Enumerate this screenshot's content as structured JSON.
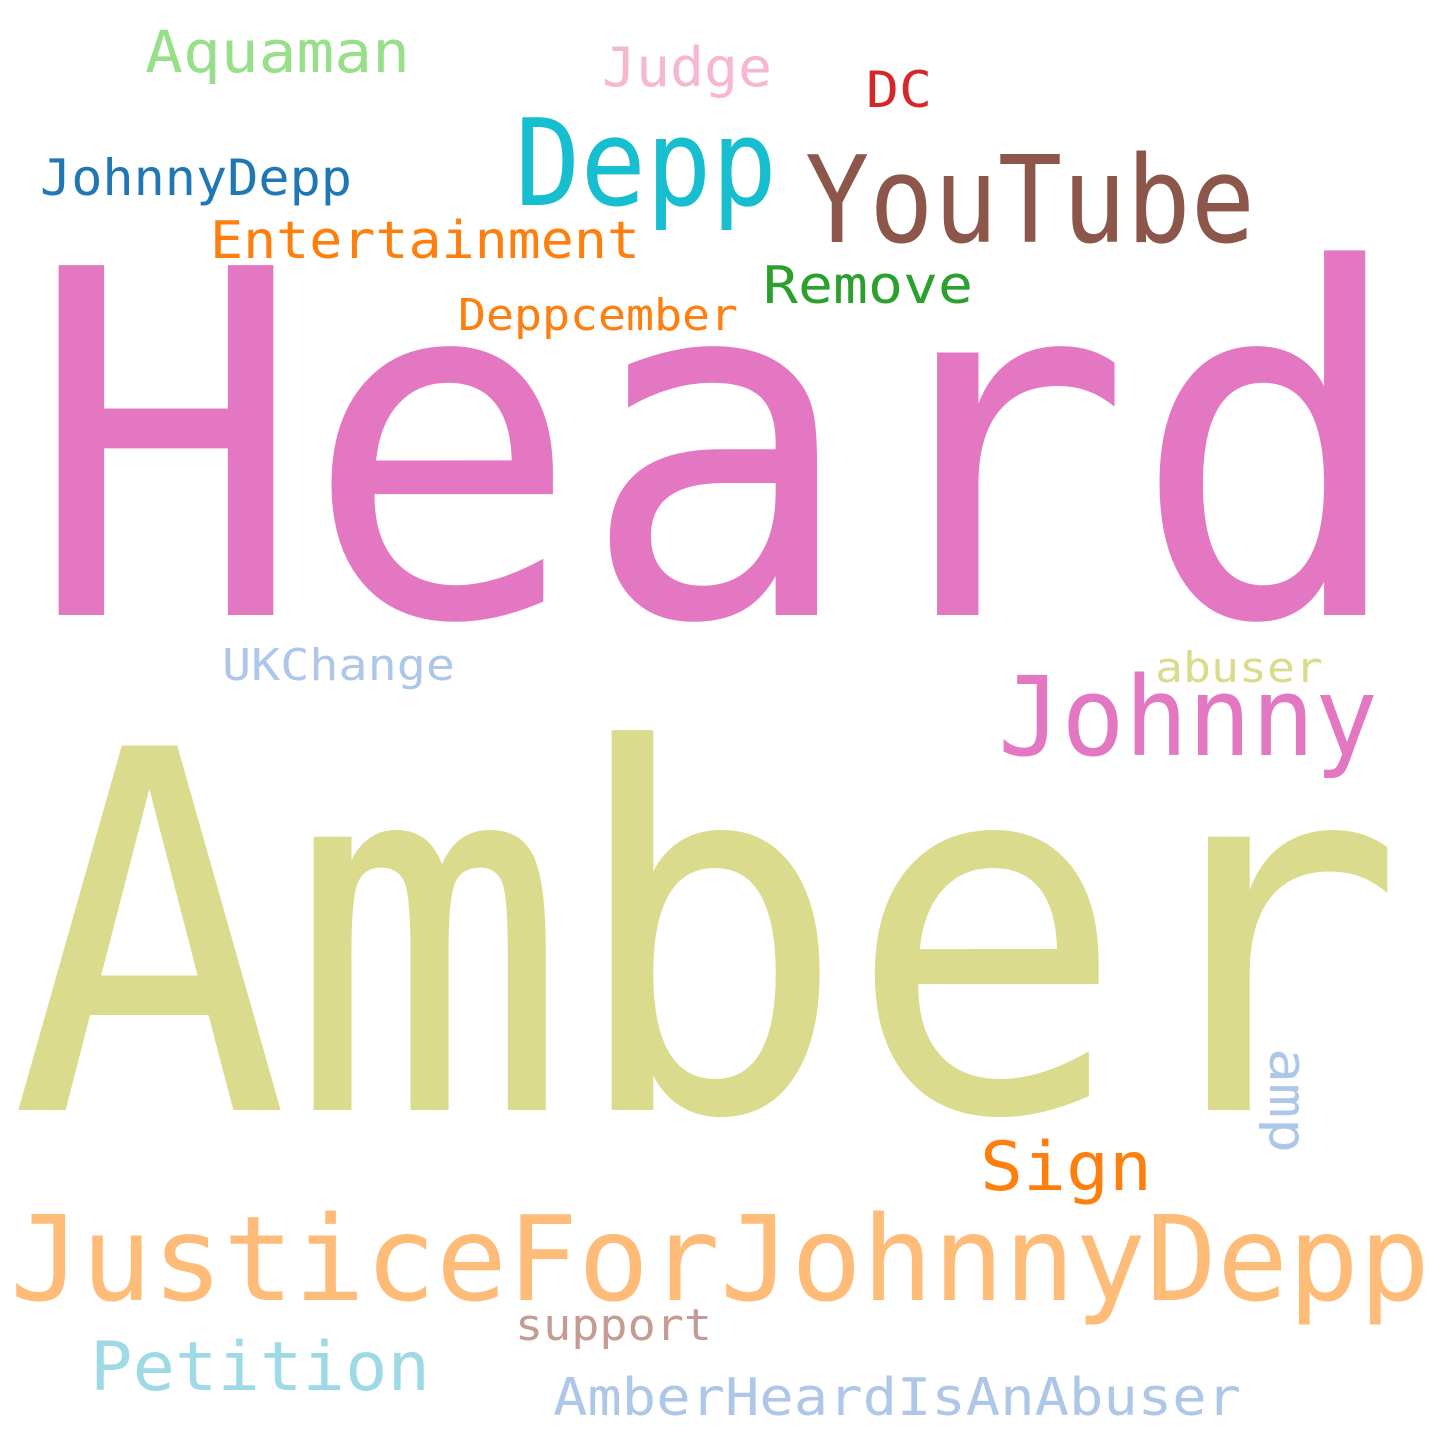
{
  "words": [
    {
      "key": "heard",
      "text": "Heard",
      "color": "#e377c2"
    },
    {
      "key": "amber",
      "text": "Amber",
      "color": "#dbdb8d"
    },
    {
      "key": "justice",
      "text": "JusticeForJohnnyDepp",
      "color": "#ffbb78"
    },
    {
      "key": "youtube",
      "text": "YouTube",
      "color": "#8c564b"
    },
    {
      "key": "depp",
      "text": "Depp",
      "color": "#17becf"
    },
    {
      "key": "johnny",
      "text": "Johnny",
      "color": "#e377c2"
    },
    {
      "key": "entertainment",
      "text": "Entertainment",
      "color": "#ff7f0e"
    },
    {
      "key": "aquaman",
      "text": "Aquaman",
      "color": "#98df8a"
    },
    {
      "key": "johnnydepp",
      "text": "JohnnyDepp",
      "color": "#1f77b4"
    },
    {
      "key": "judge",
      "text": "Judge",
      "color": "#f7b6d2"
    },
    {
      "key": "dc",
      "text": "DC",
      "color": "#d62728"
    },
    {
      "key": "remove",
      "text": "Remove",
      "color": "#2ca02c"
    },
    {
      "key": "deppcember",
      "text": "Deppcember",
      "color": "#ff7f0e"
    },
    {
      "key": "ukchange",
      "text": "UKChange",
      "color": "#aec7e8"
    },
    {
      "key": "abuser",
      "text": "abuser",
      "color": "#dbdb8d"
    },
    {
      "key": "sign",
      "text": "Sign",
      "color": "#ff7f0e"
    },
    {
      "key": "amp",
      "text": "amp",
      "color": "#aec7e8"
    },
    {
      "key": "support",
      "text": "support",
      "color": "#c49c94"
    },
    {
      "key": "petition",
      "text": "Petition",
      "color": "#9edae5"
    },
    {
      "key": "abuserhashtag",
      "text": "AmberHeardIsAnAbuser",
      "color": "#aec7e8"
    }
  ]
}
